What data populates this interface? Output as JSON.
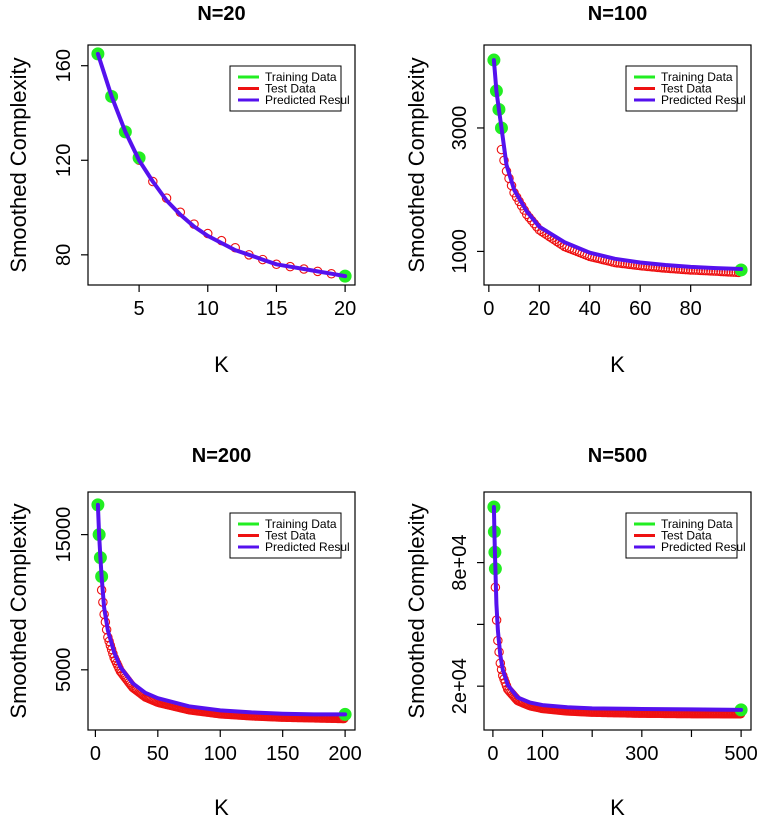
{
  "chart_data": [
    {
      "type": "line",
      "title": "N=20",
      "xlabel": "K",
      "ylabel": "Smoothed Complexity",
      "xlim": [
        2,
        20
      ],
      "ylim": [
        71,
        165
      ],
      "x_ticks": [
        5,
        10,
        15,
        20
      ],
      "x_tick_labels": [
        "5",
        "10",
        "15",
        "20"
      ],
      "y_ticks": [
        80,
        120,
        160
      ],
      "y_tick_labels": [
        "80",
        "120",
        "160"
      ],
      "legend": [
        "Training Data",
        "Test Data",
        "Predicted Resul"
      ],
      "legend_position": "top-right",
      "series": [
        {
          "name": "Training Data",
          "x": [
            2,
            3,
            4,
            5,
            20
          ],
          "values": [
            165,
            147,
            132,
            121,
            71
          ]
        },
        {
          "name": "Test Data",
          "x": [
            5,
            6,
            7,
            8,
            9,
            10,
            11,
            12,
            13,
            14,
            15,
            16,
            17,
            18,
            19
          ],
          "values": [
            120,
            111,
            104,
            98,
            93,
            89,
            86,
            83,
            80,
            78,
            76,
            75,
            74,
            73,
            72
          ]
        },
        {
          "name": "Predicted Result",
          "x": [
            2,
            3,
            4,
            5,
            6,
            7,
            8,
            9,
            10,
            11,
            12,
            13,
            14,
            15,
            16,
            17,
            18,
            19,
            20
          ],
          "values": [
            165,
            147,
            132,
            120,
            111,
            103,
            97,
            92,
            88,
            85,
            82,
            80,
            78,
            76,
            75,
            74,
            73,
            72,
            71
          ]
        }
      ]
    },
    {
      "type": "line",
      "title": "N=100",
      "xlabel": "K",
      "ylabel": "Smoothed Complexity",
      "xlim": [
        2,
        100
      ],
      "ylim": [
        600,
        4200
      ],
      "x_ticks": [
        0,
        20,
        40,
        60,
        80
      ],
      "x_tick_labels": [
        "0",
        "20",
        "40",
        "60",
        "80"
      ],
      "y_ticks": [
        1000,
        3000
      ],
      "y_tick_labels": [
        "1000",
        "3000"
      ],
      "legend": [
        "Training Data",
        "Test Data",
        "Predicted Resul"
      ],
      "legend_position": "top-right",
      "series": [
        {
          "name": "Training Data",
          "x": [
            2,
            3,
            4,
            5,
            100
          ],
          "values": [
            4100,
            3600,
            3300,
            3000,
            700
          ]
        },
        {
          "name": "Test Data",
          "x": [
            5,
            7,
            10,
            15,
            20,
            30,
            40,
            50,
            60,
            70,
            80,
            90,
            99
          ],
          "values": [
            2650,
            2300,
            1950,
            1600,
            1350,
            1080,
            920,
            820,
            770,
            730,
            700,
            680,
            660
          ]
        },
        {
          "name": "Predicted Result",
          "x": [
            2,
            3,
            4,
            5,
            7,
            10,
            15,
            20,
            30,
            40,
            50,
            60,
            70,
            80,
            90,
            100
          ],
          "values": [
            4100,
            3600,
            3300,
            3000,
            2400,
            2000,
            1650,
            1400,
            1150,
            980,
            880,
            820,
            780,
            750,
            730,
            715
          ]
        }
      ]
    },
    {
      "type": "line",
      "title": "N=200",
      "xlabel": "K",
      "ylabel": "Smoothed Complexity",
      "xlim": [
        2,
        200
      ],
      "ylim": [
        1200,
        17500
      ],
      "x_ticks": [
        0,
        50,
        100,
        150,
        200
      ],
      "x_tick_labels": [
        "0",
        "50",
        "100",
        "150",
        "200"
      ],
      "y_ticks": [
        5000,
        15000
      ],
      "y_tick_labels": [
        "5000",
        "15000"
      ],
      "legend": [
        "Training Data",
        "Test Data",
        "Predicted Resul"
      ],
      "legend_position": "top-right",
      "series": [
        {
          "name": "Training Data",
          "x": [
            2,
            3,
            4,
            5,
            200
          ],
          "values": [
            17200,
            15000,
            13300,
            11900,
            1700
          ]
        },
        {
          "name": "Test Data",
          "x": [
            5,
            7,
            10,
            15,
            20,
            30,
            40,
            50,
            75,
            100,
            125,
            150,
            175,
            199
          ],
          "values": [
            10900,
            9100,
            7400,
            5900,
            4900,
            3700,
            3000,
            2600,
            2050,
            1750,
            1600,
            1500,
            1450,
            1400
          ]
        },
        {
          "name": "Predicted Result",
          "x": [
            2,
            3,
            4,
            5,
            7,
            10,
            15,
            20,
            30,
            40,
            50,
            75,
            100,
            125,
            150,
            175,
            200
          ],
          "values": [
            17200,
            15000,
            13300,
            11900,
            9600,
            7900,
            6300,
            5200,
            4000,
            3300,
            2900,
            2300,
            2000,
            1850,
            1750,
            1700,
            1700
          ]
        }
      ]
    },
    {
      "type": "line",
      "title": "N=500",
      "xlabel": "K",
      "ylabel": "Smoothed Complexity",
      "xlim": [
        2,
        500
      ],
      "ylim": [
        3000,
        110000
      ],
      "x_ticks": [
        0,
        100,
        200,
        300,
        400,
        500
      ],
      "x_tick_labels": [
        "0",
        "100",
        "",
        "300",
        "",
        "500"
      ],
      "y_ticks": [
        20000,
        50000,
        80000
      ],
      "y_tick_labels": [
        "2e+04",
        "",
        "8e+04"
      ],
      "legend": [
        "Training Data",
        "Test Data",
        "Predicted Resul"
      ],
      "legend_position": "top-right",
      "series": [
        {
          "name": "Training Data",
          "x": [
            2,
            3,
            4,
            5,
            500
          ],
          "values": [
            107000,
            95000,
            85000,
            77000,
            8500
          ]
        },
        {
          "name": "Test Data",
          "x": [
            5,
            7,
            10,
            15,
            20,
            30,
            50,
            75,
            100,
            150,
            200,
            300,
            400,
            499
          ],
          "values": [
            68000,
            54000,
            42000,
            31000,
            25000,
            18500,
            13000,
            10500,
            9200,
            8000,
            7400,
            6900,
            6700,
            6600
          ]
        },
        {
          "name": "Predicted Result",
          "x": [
            2,
            3,
            4,
            5,
            7,
            10,
            15,
            20,
            30,
            50,
            75,
            100,
            150,
            200,
            300,
            400,
            500
          ],
          "values": [
            107000,
            95000,
            85000,
            77000,
            60000,
            47000,
            35000,
            28000,
            20500,
            14500,
            12000,
            10800,
            9800,
            9200,
            8900,
            8700,
            8500
          ]
        }
      ]
    }
  ],
  "colors": {
    "training": "#22ee22",
    "test": "#ee1111",
    "predicted": "#5511ee",
    "axis": "#000000"
  }
}
